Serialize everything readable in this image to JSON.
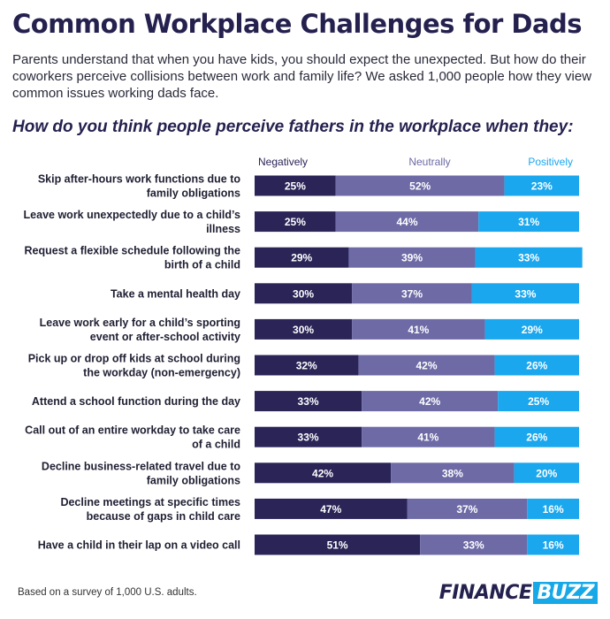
{
  "header": {
    "title": "Common Workplace Challenges for Dads",
    "intro": "Parents understand that when you have kids, you should expect the unexpected. But how do their coworkers perceive collisions between work and family life? We asked 1,000 people how they view common issues working dads face.",
    "question": "How do you think people perceive fathers in the workplace when they:"
  },
  "footer": {
    "note": "Based on a survey of 1,000 U.S. adults.",
    "logo_part1": "FINANCE",
    "logo_part2": "BUZZ"
  },
  "colors": {
    "negative": "#2a2457",
    "neutral": "#6d6aa6",
    "positive": "#1aa7ee",
    "label_negative": "#2a2457",
    "label_neutral": "#6d6aa6",
    "label_positive": "#1aa7ee"
  },
  "chart_data": {
    "type": "bar",
    "orientation": "horizontal",
    "stacked": true,
    "unit": "%",
    "legend_position": "top",
    "categories": [
      [
        "Skip after-hours work functions due to",
        "family obligations"
      ],
      [
        "Leave work unexpectedly due to a child’s",
        "illness"
      ],
      [
        "Request a flexible schedule following the",
        "birth of a child"
      ],
      [
        "Take a mental health day"
      ],
      [
        "Leave work early for a child’s sporting",
        "event or after-school activity"
      ],
      [
        "Pick up or drop off kids at school during",
        "the workday (non-emergency)"
      ],
      [
        "Attend a school function during the day"
      ],
      [
        "Call out of an entire workday to take care",
        "of a child"
      ],
      [
        "Decline business-related travel due to",
        "family obligations"
      ],
      [
        "Decline meetings at specific times",
        "because of gaps in child care"
      ],
      [
        "Have a child in their lap on a video call"
      ]
    ],
    "series": [
      {
        "name": "Negatively",
        "values": [
          25,
          25,
          29,
          30,
          30,
          32,
          33,
          33,
          42,
          47,
          51
        ]
      },
      {
        "name": "Neutrally",
        "values": [
          52,
          44,
          39,
          37,
          41,
          42,
          42,
          41,
          38,
          37,
          33
        ]
      },
      {
        "name": "Positively",
        "values": [
          23,
          31,
          33,
          33,
          29,
          26,
          25,
          26,
          20,
          16,
          16
        ]
      }
    ],
    "xlim": [
      0,
      100
    ]
  }
}
